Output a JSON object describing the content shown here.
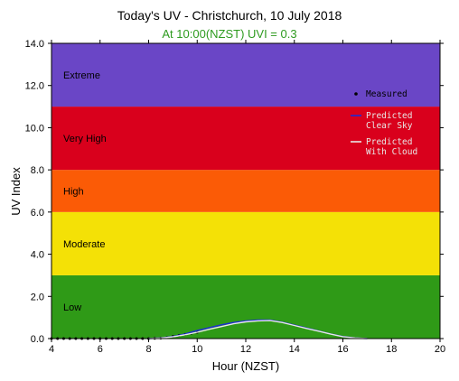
{
  "chart_data": {
    "type": "line",
    "title": "Today's UV - Christchurch, 10 July 2018",
    "subtitle": "At 10:00(NZST) UVI =  0.3",
    "xlabel": "Hour (NZST)",
    "ylabel": "UV Index",
    "xlim": [
      4,
      20
    ],
    "ylim": [
      0,
      14
    ],
    "x_ticks": [
      4,
      6,
      8,
      10,
      12,
      14,
      16,
      18,
      20
    ],
    "y_ticks": [
      "0.0",
      "2.0",
      "4.0",
      "6.0",
      "8.0",
      "10.0",
      "12.0",
      "14.0"
    ],
    "bands": [
      {
        "label": "Low",
        "from": 0,
        "to": 3,
        "color": "#2f9a17"
      },
      {
        "label": "Moderate",
        "from": 3,
        "to": 6,
        "color": "#f4e106"
      },
      {
        "label": "High",
        "from": 6,
        "to": 8,
        "color": "#fb5b06"
      },
      {
        "label": "Very High",
        "from": 8,
        "to": 11,
        "color": "#d9001c"
      },
      {
        "label": "Extreme",
        "from": 11,
        "to": 14,
        "color": "#6a46c6"
      }
    ],
    "series": [
      {
        "name": "Measured",
        "style": "points",
        "color": "#000000",
        "x": [
          4.0,
          4.25,
          4.5,
          4.75,
          5.0,
          5.25,
          5.5,
          5.75,
          6.0,
          6.25,
          6.5,
          6.75,
          7.0,
          7.25,
          7.5,
          7.75,
          8.0,
          8.25,
          8.5,
          8.75,
          9.0,
          9.25,
          9.5,
          9.75,
          10.0
        ],
        "y": [
          0,
          0,
          0,
          0,
          0,
          0,
          0,
          0,
          0,
          0,
          0,
          0,
          0,
          0,
          0,
          0,
          0,
          0.01,
          0.02,
          0.05,
          0.1,
          0.15,
          0.2,
          0.25,
          0.3
        ]
      },
      {
        "name": "Predicted Clear Sky",
        "style": "line",
        "color": "#1d2bd6",
        "x": [
          8.0,
          8.5,
          9.0,
          9.5,
          10.0,
          10.5,
          11.0,
          11.5,
          12.0,
          12.5,
          13.0,
          13.5,
          14.0,
          14.5,
          15.0,
          15.5,
          16.0,
          16.5,
          17.0
        ],
        "y": [
          0,
          0.03,
          0.1,
          0.22,
          0.38,
          0.52,
          0.65,
          0.76,
          0.84,
          0.88,
          0.88,
          0.78,
          0.64,
          0.5,
          0.36,
          0.22,
          0.1,
          0.03,
          0
        ]
      },
      {
        "name": "Predicted With Cloud",
        "style": "line",
        "color": "#e8e8e8",
        "x": [
          8.0,
          8.5,
          9.0,
          9.5,
          10.0,
          10.5,
          11.0,
          11.5,
          12.0,
          12.5,
          13.0,
          13.5,
          14.0,
          14.5,
          15.0,
          15.5,
          16.0,
          16.5,
          17.0
        ],
        "y": [
          0,
          0.02,
          0.08,
          0.18,
          0.3,
          0.44,
          0.57,
          0.7,
          0.79,
          0.84,
          0.85,
          0.76,
          0.62,
          0.48,
          0.35,
          0.21,
          0.09,
          0.03,
          0
        ]
      }
    ],
    "legend": [
      {
        "label": "Measured",
        "color": "#000000"
      },
      {
        "label": "Predicted\nClear Sky",
        "color": "#1d2bd6"
      },
      {
        "label": "Predicted\nWith Cloud",
        "color": "#e8e8e8"
      }
    ],
    "legend_placement": "upper-right",
    "grid": false
  }
}
